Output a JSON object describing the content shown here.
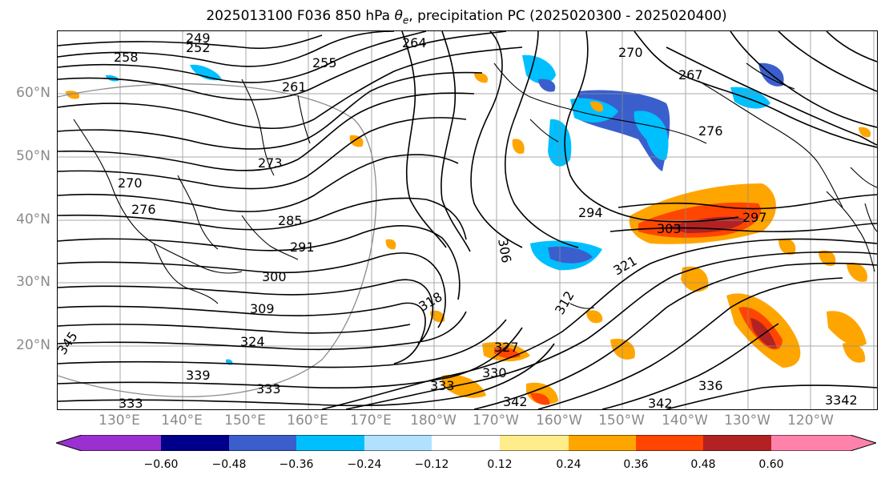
{
  "title": {
    "prefix": "2025013100 F036 850 hPa ",
    "theta": "θ",
    "theta_sub": "e",
    "suffix": ", precipitation PC (2025020300 - 2025020400)"
  },
  "lat_labels": [
    "60°N",
    "50°N",
    "40°N",
    "30°N",
    "20°N"
  ],
  "lon_labels": [
    "130°E",
    "140°E",
    "150°E",
    "160°E",
    "170°E",
    "180°W",
    "170°W",
    "160°W",
    "150°W",
    "140°W",
    "130°W",
    "120°W"
  ],
  "colorbar": {
    "ticks": [
      "−0.60",
      "−0.48",
      "−0.36",
      "−0.24",
      "−0.12",
      "0.12",
      "0.24",
      "0.36",
      "0.48",
      "0.60"
    ],
    "colors": [
      "#9b30d0",
      "#00008b",
      "#3a5fcd",
      "#00bfff",
      "#b0e2ff",
      "#ffffff",
      "#ffec8b",
      "#ffa500",
      "#ff4500",
      "#b22222",
      "#ff82ab"
    ]
  },
  "contour_labels": [
    "249",
    "252",
    "258",
    "255",
    "261",
    "264",
    "270",
    "267",
    "273",
    "276",
    "285",
    "291",
    "294",
    "297",
    "300",
    "303",
    "306",
    "309",
    "312",
    "318",
    "321",
    "324",
    "327",
    "330",
    "333",
    "336",
    "339",
    "342",
    "345"
  ],
  "colors": {
    "contour": "#000000",
    "grid": "#8c8c8c",
    "coast": "#000000",
    "label_gray": "#8a8a8a"
  }
}
